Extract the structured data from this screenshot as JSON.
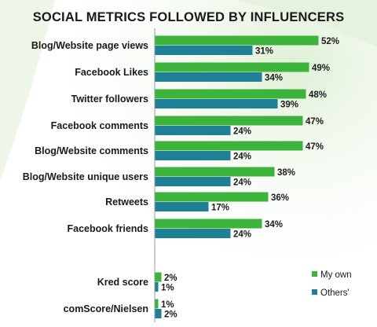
{
  "chart_data": {
    "type": "bar",
    "orientation": "horizontal",
    "title": "SOCIAL METRICS FOLLOWED BY INFLUENCERS",
    "categories": [
      "Blog/Website page views",
      "Facebook Likes",
      "Twitter followers",
      "Facebook comments",
      "Blog/Website comments",
      "Blog/Website unique users",
      "Retweets",
      "Facebook friends",
      "Kred score",
      "comScore/Nielsen"
    ],
    "series": [
      {
        "name": "My own",
        "color": "#3cb43c",
        "values": [
          52,
          49,
          48,
          47,
          47,
          38,
          36,
          34,
          2,
          1
        ]
      },
      {
        "name": "Others'",
        "color": "#1f8095",
        "values": [
          31,
          34,
          39,
          24,
          24,
          24,
          17,
          24,
          1,
          2
        ]
      }
    ],
    "value_format": "{v}%",
    "legend_position": "bottom-right",
    "grid": false
  }
}
